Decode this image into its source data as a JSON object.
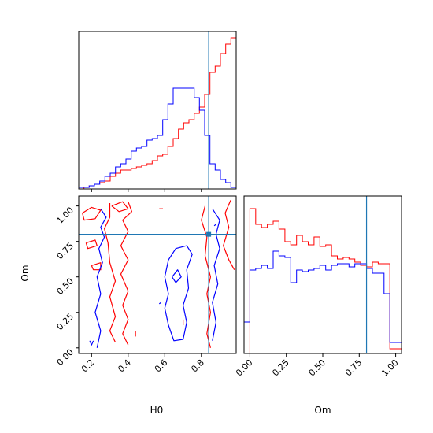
{
  "chart_data": {
    "type": "corner",
    "parameters": [
      "H0",
      "Om"
    ],
    "colors": {
      "red": "#ff0000",
      "blue": "#0000ff",
      "truth": "#1f77b4",
      "axes": "#000000"
    },
    "truth": {
      "H0": 0.84,
      "Om": 0.8
    },
    "panels": {
      "h0_hist": {
        "xlim": [
          0.13,
          0.99
        ],
        "bin_edges": [
          0.13,
          0.1587,
          0.1873,
          0.216,
          0.2447,
          0.2733,
          0.302,
          0.3307,
          0.3593,
          0.388,
          0.4167,
          0.4453,
          0.474,
          0.5027,
          0.5313,
          0.56,
          0.5887,
          0.6173,
          0.646,
          0.6747,
          0.7033,
          0.732,
          0.7607,
          0.7893,
          0.818,
          0.8467,
          0.8753,
          0.904,
          0.9327,
          0.9613,
          0.99
        ],
        "series": [
          {
            "color": "red",
            "values": [
              0,
              0.01,
              0.02,
              0.03,
              0.04,
              0.05,
              0.08,
              0.1,
              0.12,
              0.12,
              0.13,
              0.14,
              0.15,
              0.16,
              0.18,
              0.21,
              0.22,
              0.27,
              0.32,
              0.38,
              0.42,
              0.44,
              0.48,
              0.52,
              0.6,
              0.74,
              0.78,
              0.86,
              0.92,
              0.96
            ]
          },
          {
            "color": "blue",
            "values": [
              0.01,
              0.01,
              0.02,
              0.03,
              0.05,
              0.08,
              0.1,
              0.14,
              0.16,
              0.19,
              0.24,
              0.26,
              0.27,
              0.31,
              0.32,
              0.34,
              0.44,
              0.54,
              0.64,
              0.64,
              0.64,
              0.64,
              0.58,
              0.5,
              0.34,
              0.16,
              0.12,
              0.06,
              0.04,
              0.01
            ]
          }
        ]
      },
      "om_hist": {
        "xlim": [
          -0.04,
          1.04
        ],
        "xticks": [
          0.0,
          0.25,
          0.5,
          0.75,
          1.0
        ],
        "xtick_labels": [
          "0.00",
          "0.25",
          "0.50",
          "0.75",
          "1.00"
        ],
        "xlabel": "Om",
        "bin_edges": [
          -0.04,
          0.0,
          0.04,
          0.08,
          0.12,
          0.16,
          0.2,
          0.24,
          0.28,
          0.32,
          0.36,
          0.4,
          0.44,
          0.48,
          0.52,
          0.56,
          0.6,
          0.64,
          0.68,
          0.72,
          0.76,
          0.8,
          0.84,
          0.88,
          0.92,
          0.96,
          1.0,
          1.04
        ],
        "series": [
          {
            "color": "red",
            "values": [
              0,
              0.92,
              0.82,
              0.8,
              0.82,
              0.84,
              0.79,
              0.71,
              0.69,
              0.75,
              0.71,
              0.69,
              0.74,
              0.68,
              0.69,
              0.62,
              0.6,
              0.61,
              0.6,
              0.58,
              0.56,
              0.55,
              0.58,
              0.57,
              0.57,
              0.03,
              0.03
            ]
          },
          {
            "color": "blue",
            "values": [
              0.2,
              0.53,
              0.54,
              0.56,
              0.54,
              0.65,
              0.62,
              0.61,
              0.45,
              0.53,
              0.52,
              0.53,
              0.54,
              0.56,
              0.53,
              0.56,
              0.57,
              0.57,
              0.55,
              0.57,
              0.57,
              0.54,
              0.51,
              0.51,
              0.38,
              0.07,
              0.07
            ]
          }
        ]
      },
      "scatter": {
        "xlim": [
          0.13,
          0.99
        ],
        "ylim": [
          -0.04,
          1.07
        ],
        "xticks": [
          0.2,
          0.4,
          0.6,
          0.8
        ],
        "xtick_labels": [
          "0.2",
          "0.4",
          "0.6",
          "0.8"
        ],
        "yticks": [
          0.0,
          0.25,
          0.5,
          0.75,
          1.0
        ],
        "ytick_labels": [
          "0.00",
          "0.25",
          "0.50",
          "0.75",
          "1.00"
        ],
        "xlabel": "H0",
        "ylabel": "Om",
        "contours": [
          {
            "color": "red",
            "points": [
              [
                0.3,
                1.02
              ],
              [
                0.3,
                0.92
              ],
              [
                0.27,
                0.84
              ],
              [
                0.29,
                0.74
              ],
              [
                0.3,
                0.6
              ],
              [
                0.33,
                0.47
              ],
              [
                0.3,
                0.36
              ],
              [
                0.33,
                0.22
              ],
              [
                0.3,
                0.12
              ],
              [
                0.33,
                0.04
              ]
            ]
          },
          {
            "color": "red",
            "points": [
              [
                0.4,
                1.03
              ],
              [
                0.42,
                0.96
              ],
              [
                0.37,
                0.9
              ],
              [
                0.4,
                0.82
              ],
              [
                0.36,
                0.72
              ],
              [
                0.4,
                0.62
              ],
              [
                0.36,
                0.52
              ],
              [
                0.4,
                0.4
              ],
              [
                0.37,
                0.3
              ],
              [
                0.4,
                0.2
              ],
              [
                0.37,
                0.1
              ],
              [
                0.4,
                0.02
              ]
            ]
          },
          {
            "color": "red",
            "points": [
              [
                0.15,
                0.95
              ],
              [
                0.2,
                0.99
              ],
              [
                0.25,
                0.97
              ],
              [
                0.22,
                0.91
              ],
              [
                0.16,
                0.9
              ],
              [
                0.15,
                0.95
              ]
            ]
          },
          {
            "color": "red",
            "points": [
              [
                0.17,
                0.74
              ],
              [
                0.22,
                0.76
              ],
              [
                0.23,
                0.72
              ],
              [
                0.18,
                0.7
              ],
              [
                0.17,
                0.74
              ]
            ]
          },
          {
            "color": "red",
            "points": [
              [
                0.2,
                0.58
              ],
              [
                0.25,
                0.6
              ],
              [
                0.25,
                0.55
              ],
              [
                0.21,
                0.55
              ],
              [
                0.2,
                0.58
              ]
            ]
          },
          {
            "color": "red",
            "points": [
              [
                0.31,
                1.0
              ],
              [
                0.37,
                1.03
              ],
              [
                0.4,
                0.98
              ],
              [
                0.35,
                0.96
              ],
              [
                0.31,
                1.0
              ]
            ]
          },
          {
            "color": "red",
            "points": [
              [
                0.82,
                1.0
              ],
              [
                0.8,
                0.9
              ],
              [
                0.83,
                0.78
              ],
              [
                0.82,
                0.65
              ],
              [
                0.85,
                0.5
              ],
              [
                0.83,
                0.38
              ],
              [
                0.85,
                0.25
              ],
              [
                0.83,
                0.1
              ],
              [
                0.85,
                0.0
              ]
            ]
          },
          {
            "color": "red",
            "points": [
              [
                0.96,
                1.04
              ],
              [
                0.93,
                0.95
              ],
              [
                0.95,
                0.85
              ],
              [
                0.92,
                0.72
              ],
              [
                0.95,
                0.62
              ],
              [
                0.98,
                0.55
              ]
            ]
          },
          {
            "color": "red",
            "points": [
              [
                0.57,
                0.98
              ],
              [
                0.59,
                0.98
              ]
            ]
          },
          {
            "color": "red",
            "points": [
              [
                0.44,
                0.12
              ],
              [
                0.44,
                0.08
              ]
            ]
          },
          {
            "color": "red",
            "points": [
              [
                0.7,
                0.2
              ],
              [
                0.7,
                0.16
              ]
            ]
          },
          {
            "color": "blue",
            "points": [
              [
                0.25,
                0.98
              ],
              [
                0.28,
                0.92
              ],
              [
                0.25,
                0.85
              ],
              [
                0.27,
                0.78
              ],
              [
                0.24,
                0.7
              ],
              [
                0.26,
                0.6
              ],
              [
                0.23,
                0.5
              ],
              [
                0.25,
                0.38
              ],
              [
                0.22,
                0.25
              ],
              [
                0.25,
                0.12
              ],
              [
                0.23,
                0.0
              ]
            ]
          },
          {
            "color": "blue",
            "points": [
              [
                0.62,
                0.62
              ],
              [
                0.6,
                0.5
              ],
              [
                0.62,
                0.38
              ],
              [
                0.6,
                0.28
              ],
              [
                0.62,
                0.16
              ],
              [
                0.65,
                0.05
              ],
              [
                0.7,
                0.06
              ],
              [
                0.72,
                0.18
              ],
              [
                0.7,
                0.3
              ],
              [
                0.73,
                0.42
              ],
              [
                0.72,
                0.55
              ],
              [
                0.75,
                0.66
              ],
              [
                0.72,
                0.72
              ],
              [
                0.66,
                0.7
              ],
              [
                0.62,
                0.62
              ]
            ]
          },
          {
            "color": "blue",
            "points": [
              [
                0.86,
                0.98
              ],
              [
                0.9,
                0.9
              ],
              [
                0.88,
                0.8
              ],
              [
                0.9,
                0.7
              ],
              [
                0.87,
                0.58
              ],
              [
                0.89,
                0.45
              ],
              [
                0.86,
                0.32
              ],
              [
                0.88,
                0.18
              ],
              [
                0.86,
                0.05
              ]
            ]
          },
          {
            "color": "blue",
            "points": [
              [
                0.64,
                0.5
              ],
              [
                0.67,
                0.55
              ],
              [
                0.69,
                0.5
              ],
              [
                0.66,
                0.46
              ],
              [
                0.64,
                0.5
              ]
            ]
          },
          {
            "color": "blue",
            "points": [
              [
                0.19,
                0.05
              ],
              [
                0.2,
                0.02
              ],
              [
                0.21,
                0.05
              ]
            ]
          },
          {
            "color": "blue",
            "points": [
              [
                0.57,
                0.31
              ],
              [
                0.58,
                0.32
              ]
            ]
          },
          {
            "color": "blue",
            "points": [
              [
                0.87,
                0.86
              ],
              [
                0.88,
                0.87
              ]
            ]
          }
        ]
      }
    }
  }
}
